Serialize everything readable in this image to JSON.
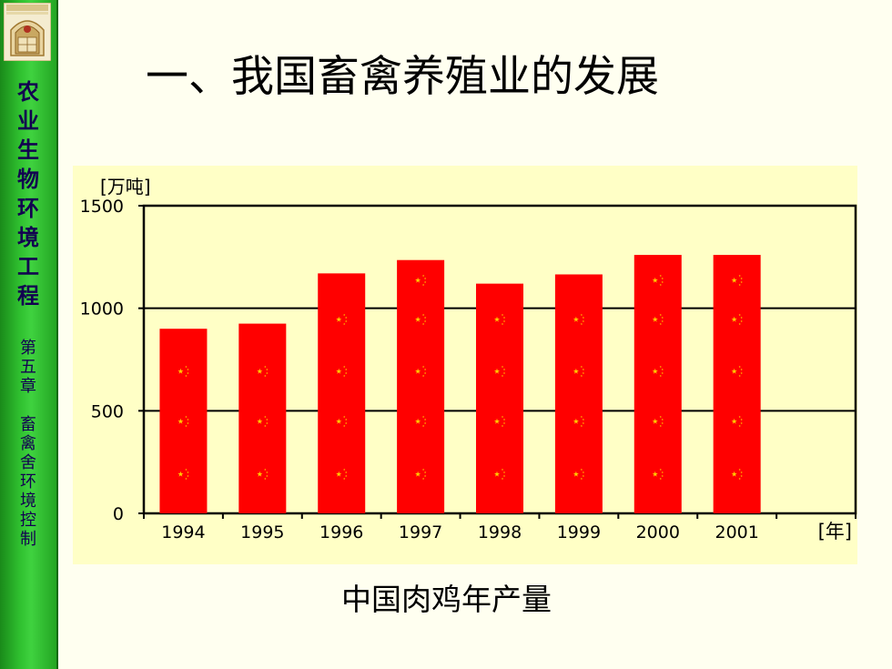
{
  "slide": {
    "title": "一、我国畜禽养殖业的发展",
    "caption": "中国肉鸡年产量"
  },
  "sidebar": {
    "course_title": [
      "农",
      "业",
      "生",
      "物",
      "环",
      "境",
      "工",
      "程"
    ],
    "chapter_title": [
      "第",
      "五",
      "章",
      "",
      "畜",
      "禽",
      "舍",
      "环",
      "境",
      "控",
      "制"
    ],
    "logo_icon": "university-emblem-icon"
  },
  "colors": {
    "sidebar": "#2fb52f",
    "chart_background": "#ffffc6",
    "bar": "#ff0000",
    "star": "#ffcc00"
  },
  "chart_data": {
    "type": "bar",
    "title": "",
    "categories": [
      "1994",
      "1995",
      "1996",
      "1997",
      "1998",
      "1999",
      "2000",
      "2001"
    ],
    "values": [
      900,
      925,
      1170,
      1235,
      1120,
      1165,
      1260,
      1260
    ],
    "xlabel": "[年]",
    "ylabel": "[万吨]",
    "ylim": [
      0,
      1500
    ],
    "yticks": [
      0,
      500,
      1000,
      1500
    ],
    "grid": true,
    "legend": "none"
  }
}
